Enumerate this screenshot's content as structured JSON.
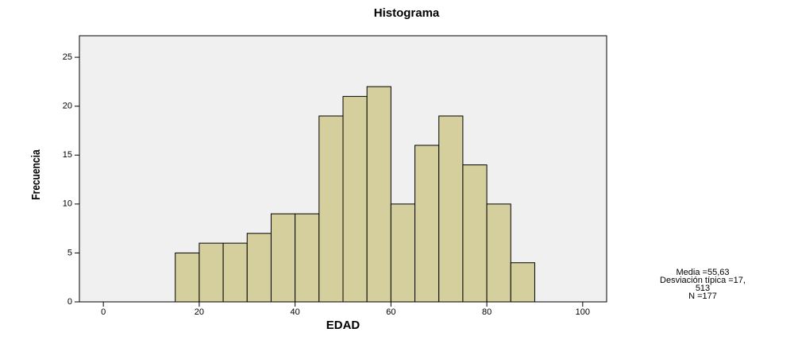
{
  "chart_data": {
    "type": "histogram",
    "title": "Histograma",
    "x_label": "EDAD",
    "y_label": "Frecuencia",
    "bins": [
      15,
      20,
      25,
      30,
      35,
      40,
      45,
      50,
      55,
      60,
      65,
      70,
      75,
      80,
      85,
      90
    ],
    "counts": [
      5,
      6,
      6,
      7,
      9,
      9,
      19,
      21,
      22,
      10,
      16,
      19,
      14,
      10,
      4
    ],
    "color": "#d4cf9c",
    "xlim": [
      -5,
      105
    ],
    "xticks": [
      0,
      20,
      40,
      60,
      80,
      100
    ],
    "ylim": [
      0,
      27.2
    ],
    "yticks": [
      0,
      5,
      10,
      15,
      20,
      25
    ],
    "stats": [
      "Media =55,63",
      "Desviación típica =17,",
      "513",
      "N =177"
    ]
  }
}
